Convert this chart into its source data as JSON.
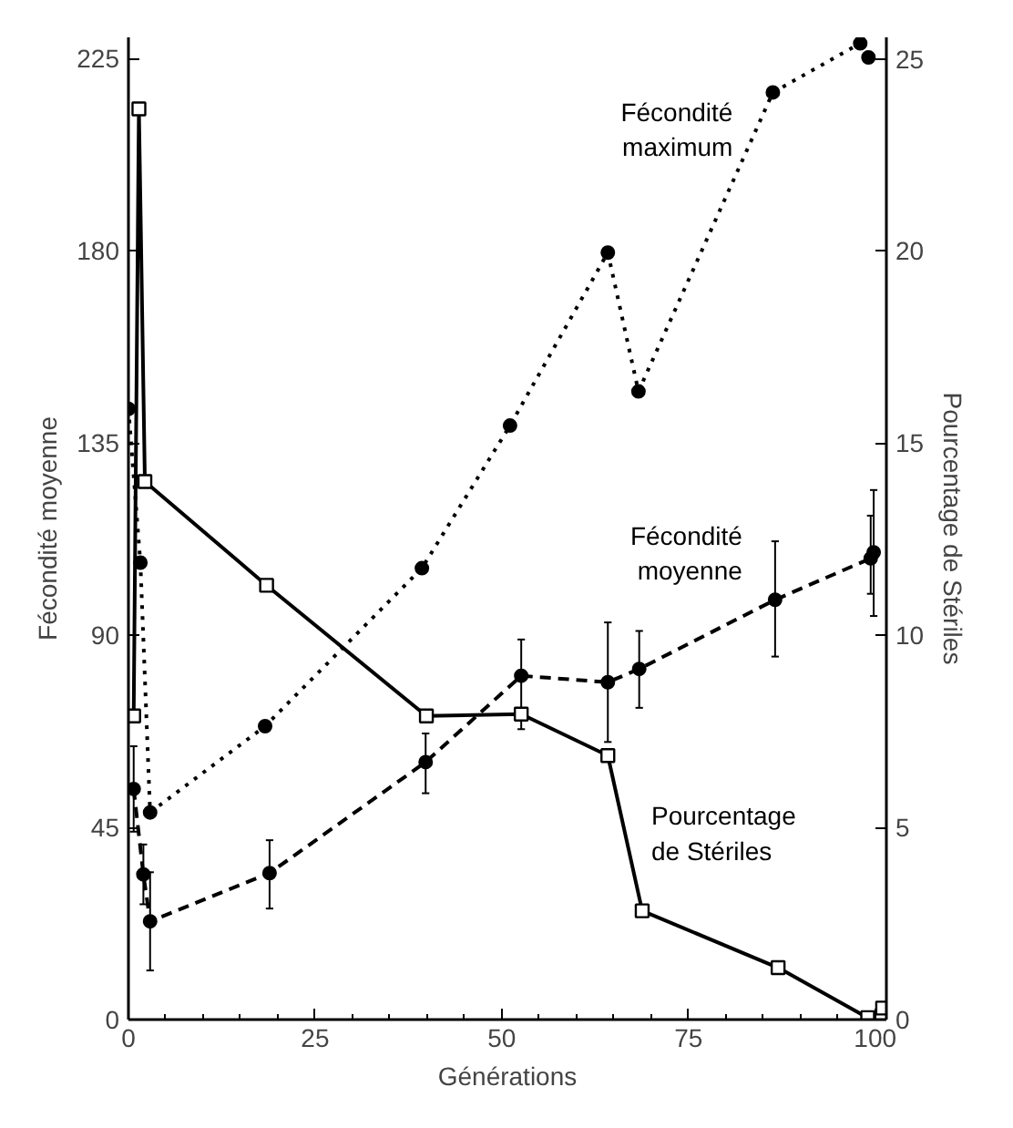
{
  "chart_data": {
    "type": "line",
    "xlabel": "Générations",
    "ylabel": "Fécondité moyenne",
    "y2label": "Pourcentage de Stériles",
    "xlim": [
      0,
      101.5
    ],
    "ylim": [
      0,
      230
    ],
    "y2lim": [
      0,
      25.56
    ],
    "xticks": [
      0,
      {
        "value": 5,
        "label": null
      },
      {
        "value": 10,
        "label": null
      },
      {
        "value": 15,
        "label": null
      },
      {
        "value": 20,
        "label": null
      },
      25,
      {
        "value": 30,
        "label": null
      },
      {
        "value": 35,
        "label": null
      },
      {
        "value": 40,
        "label": null
      },
      {
        "value": 45,
        "label": null
      },
      50,
      {
        "value": 55,
        "label": null
      },
      {
        "value": 60,
        "label": null
      },
      {
        "value": 65,
        "label": null
      },
      {
        "value": 70,
        "label": null
      },
      75,
      {
        "value": 80,
        "label": null
      },
      {
        "value": 85,
        "label": null
      },
      {
        "value": 90,
        "label": null
      },
      {
        "value": 95,
        "label": null
      },
      100
    ],
    "yticks": [
      0,
      45,
      90,
      135,
      180,
      225
    ],
    "y2ticks": [
      0,
      5,
      10,
      15,
      20,
      25
    ],
    "grid": false,
    "series": [
      {
        "name": "Fécondité maximum",
        "color": "#000000",
        "marker": "circle",
        "line_style": "dotted",
        "x": [
          0,
          1.6,
          2.9,
          18.3,
          39.3,
          51.1,
          64.2,
          68.3,
          86.3,
          98.0,
          99.1
        ],
        "values": [
          143,
          107,
          48.5,
          68.7,
          105.7,
          139.1,
          179.6,
          147.1,
          217.1,
          228.6,
          225.3
        ]
      },
      {
        "name": "Fécondité moyenne",
        "color": "#000000",
        "marker": "circle",
        "line_style": "dashed",
        "x": [
          0.7,
          2.0,
          2.9,
          18.9,
          39.8,
          52.6,
          64.2,
          68.4,
          86.6,
          99.4,
          99.8
        ],
        "values": [
          54,
          34,
          23,
          34.3,
          60.3,
          80.5,
          79,
          82.1,
          98.3,
          108,
          109.4
        ],
        "errors": [
          [
            44,
            64
          ],
          [
            27,
            41
          ],
          [
            11.5,
            34.5
          ],
          [
            26,
            42
          ],
          [
            53,
            67
          ],
          [
            68,
            89
          ],
          [
            65,
            93
          ],
          [
            73,
            91
          ],
          [
            85,
            112
          ],
          [
            99.7,
            118
          ],
          [
            94.5,
            124
          ]
        ]
      },
      {
        "name": "Pourcentage de Stériles",
        "color": "#000000",
        "marker": "square",
        "line_style": "solid",
        "axis": "y2",
        "x": [
          0.7,
          1.4,
          2.2,
          18.5,
          39.9,
          52.6,
          64.2,
          68.8,
          87.0,
          99.0,
          101.0
        ],
        "values": [
          7.9,
          23.7,
          14.0,
          11.3,
          7.9,
          7.95,
          6.87,
          2.83,
          1.35,
          0.05,
          0.3
        ]
      }
    ]
  }
}
